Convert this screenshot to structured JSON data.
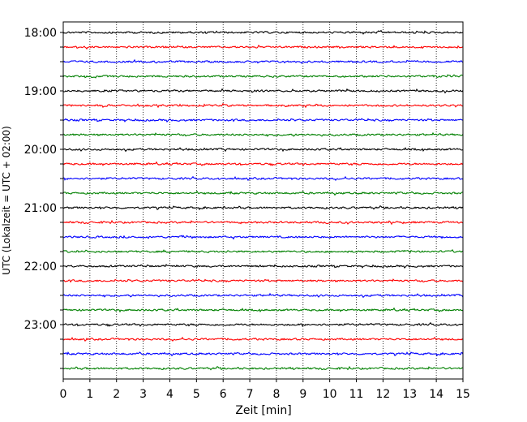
{
  "chart_data": {
    "type": "line",
    "title": "",
    "xlabel": "Zeit  [min]",
    "ylabel": "UTC (Lokalzeit = UTC + 02:00)",
    "xlim": [
      0,
      15
    ],
    "x_ticks": [
      "0",
      "1",
      "2",
      "3",
      "4",
      "5",
      "6",
      "7",
      "8",
      "9",
      "10",
      "11",
      "12",
      "13",
      "14",
      "15"
    ],
    "y_tick_labels": [
      "18:00",
      "19:00",
      "20:00",
      "21:00",
      "22:00",
      "23:00"
    ],
    "row_start": "18:00",
    "row_interval_minutes": 15,
    "row_count": 24,
    "row_colors": [
      "#000000",
      "#ff0000",
      "#0000ff",
      "#008000"
    ],
    "grid_x": true,
    "grid_style": "dotted"
  }
}
